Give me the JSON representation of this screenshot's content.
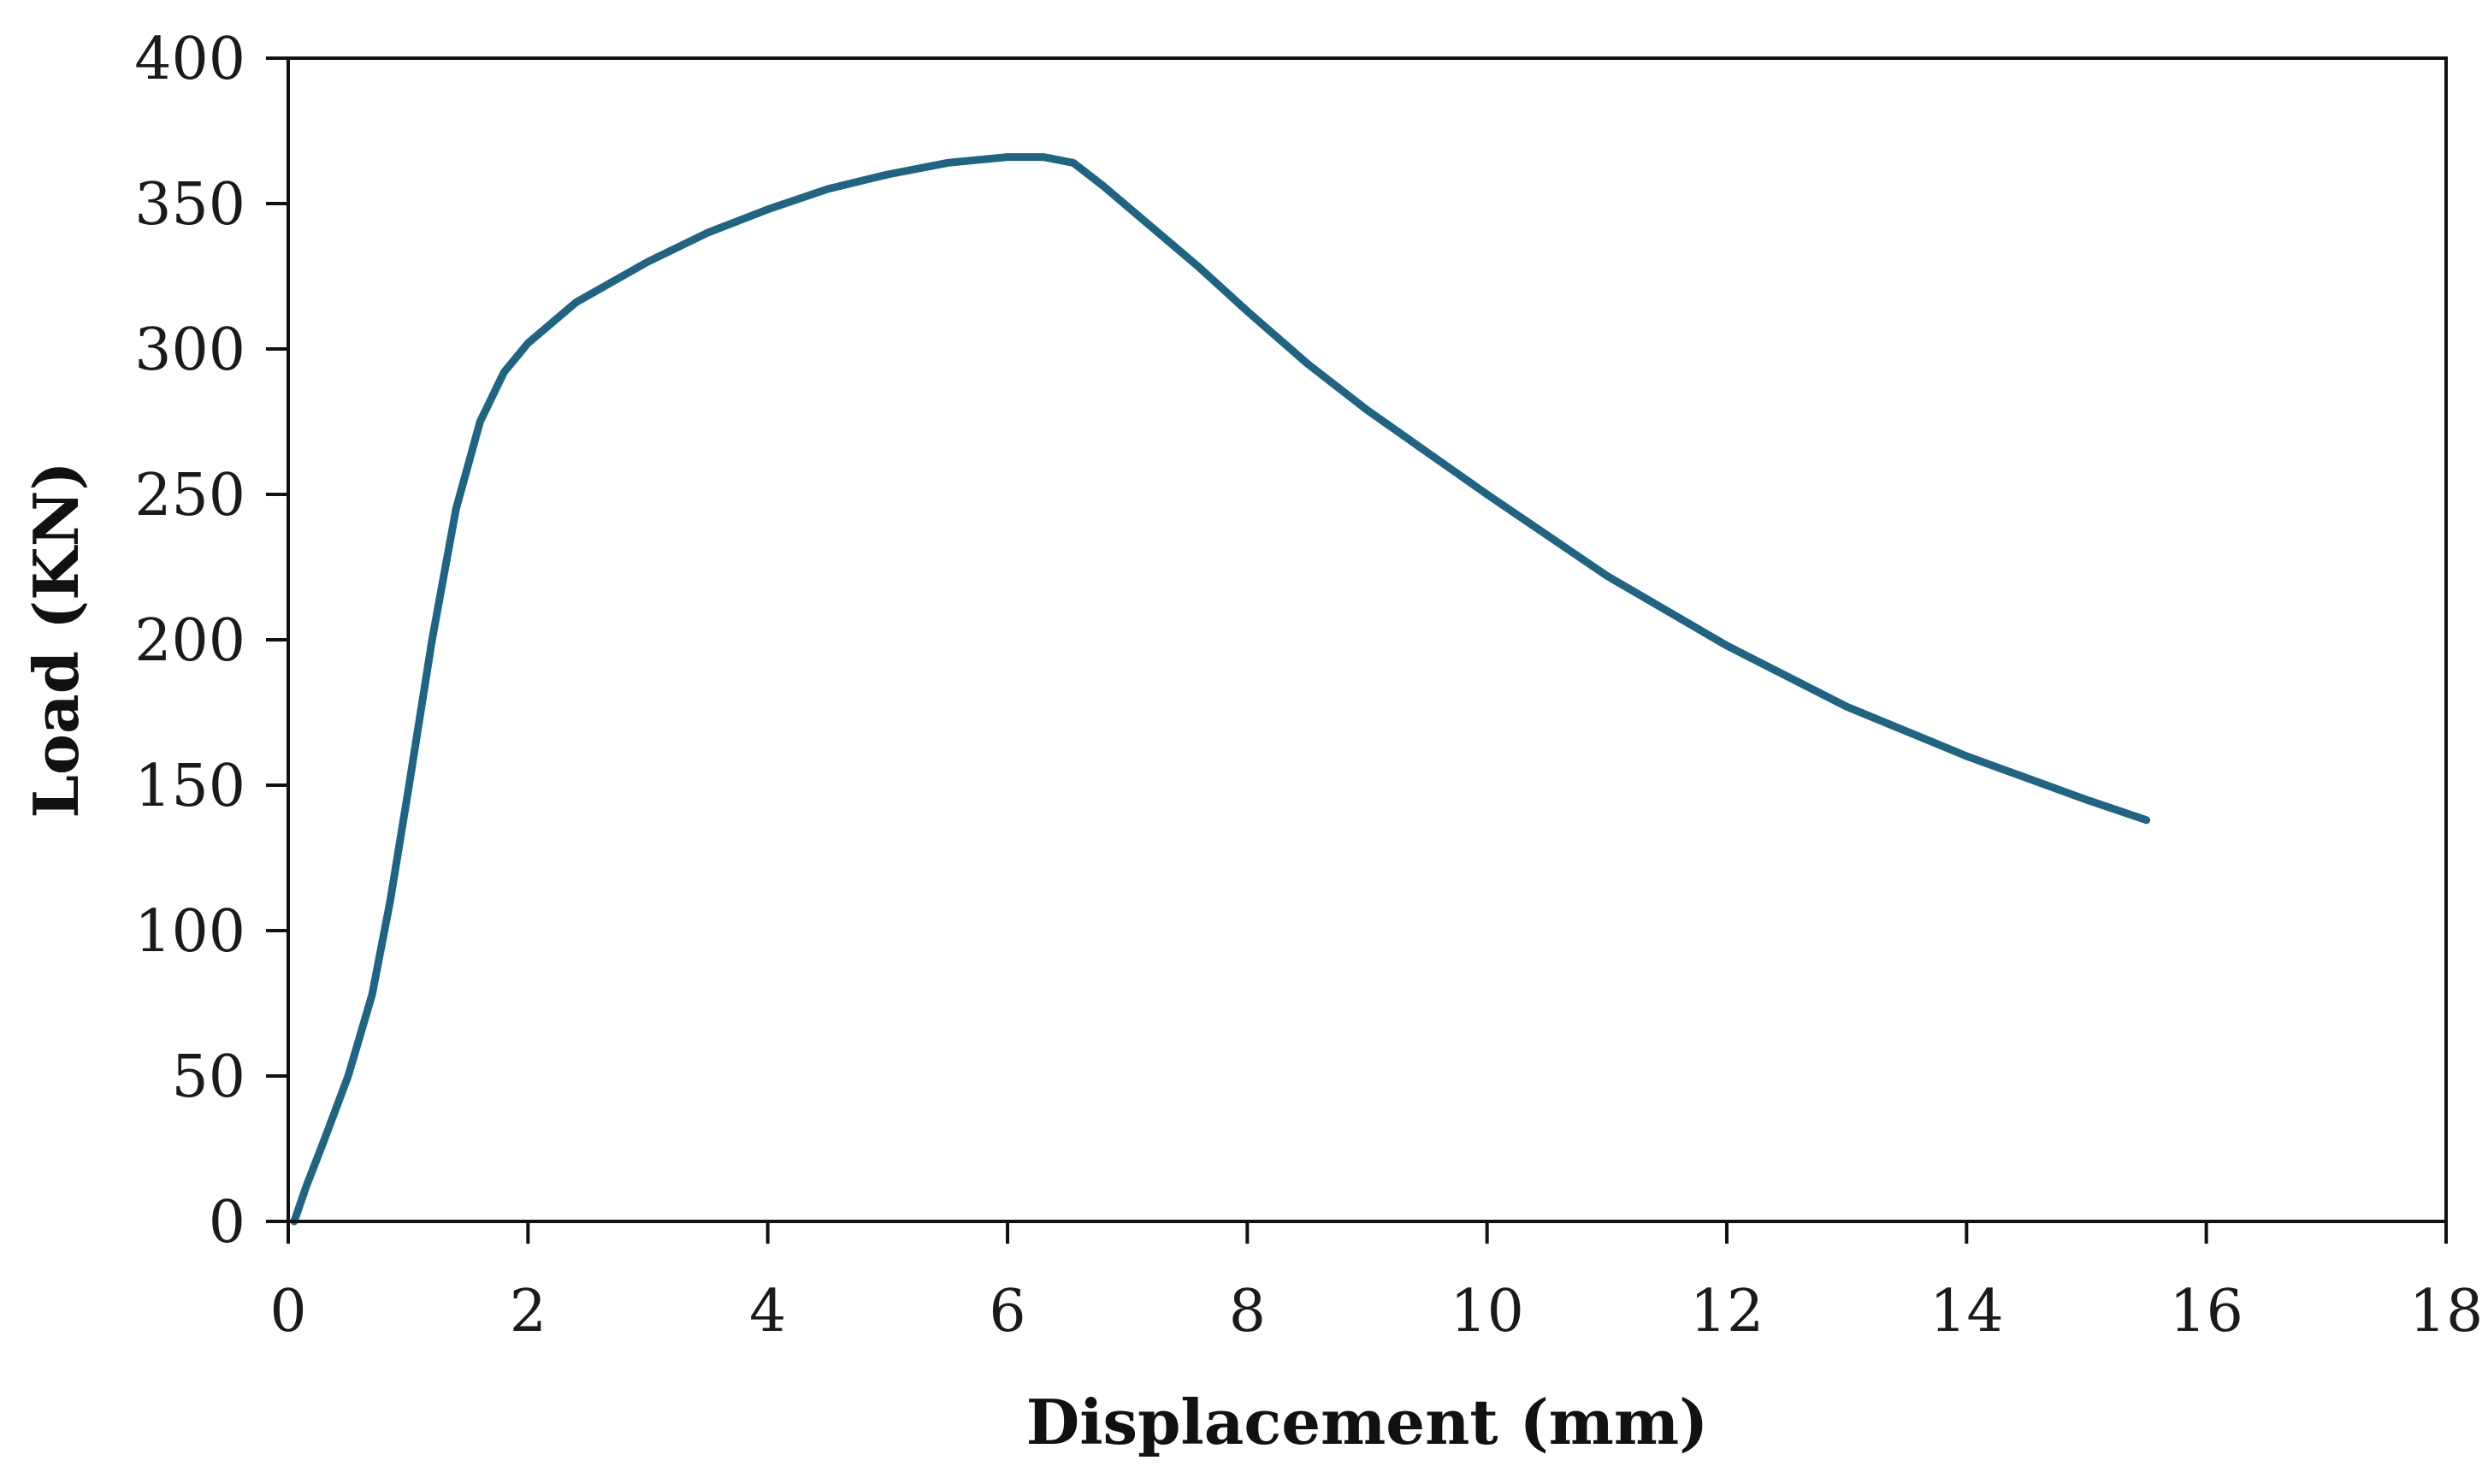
{
  "chart_data": {
    "type": "line",
    "title": "",
    "xlabel": "Displacement (mm)",
    "ylabel": "Load (KN)",
    "xlim": [
      0,
      18
    ],
    "ylim": [
      0,
      400
    ],
    "x_ticks": [
      "0",
      "2",
      "4",
      "6",
      "8",
      "10",
      "12",
      "14",
      "16",
      "18"
    ],
    "y_ticks": [
      "0",
      "50",
      "100",
      "150",
      "200",
      "250",
      "300",
      "350",
      "400"
    ],
    "grid": false,
    "legend": "none",
    "line_color": "#1f6482",
    "series": [
      {
        "x": [
          0.05,
          0.15,
          0.3,
          0.5,
          0.7,
          0.85,
          1.0,
          1.2,
          1.4,
          1.6,
          1.8,
          2.0,
          2.4,
          3.0,
          3.5,
          4.0,
          4.5,
          5.0,
          5.5,
          6.0,
          6.3,
          6.55,
          6.8,
          7.2,
          7.6,
          8.0,
          8.5,
          9.0,
          10.0,
          11.0,
          12.0,
          13.0,
          14.0,
          15.0,
          15.5
        ],
        "y": [
          0,
          12,
          28,
          50,
          78,
          110,
          148,
          200,
          245,
          275,
          292,
          302,
          316,
          330,
          340,
          348,
          355,
          360,
          364,
          366,
          366,
          364,
          356,
          342,
          328,
          313,
          295,
          279,
          250,
          222,
          198,
          177,
          160,
          145,
          138
        ]
      }
    ]
  }
}
